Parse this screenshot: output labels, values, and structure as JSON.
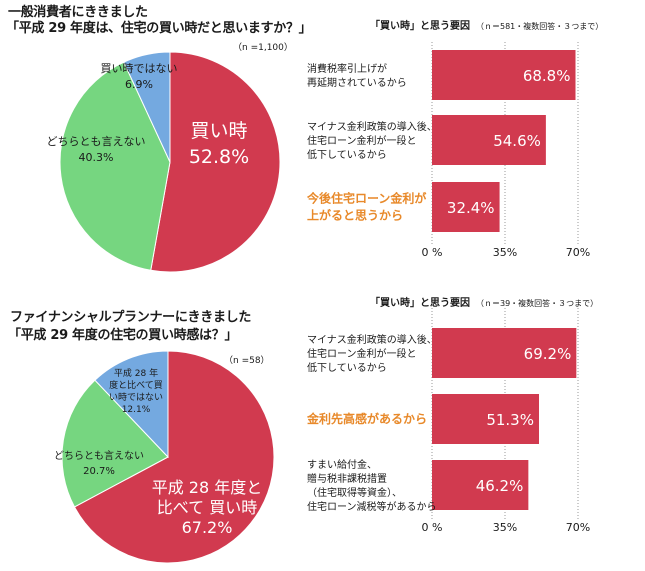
{
  "sections": [
    {
      "title_line1": "一般消費者にききました",
      "title_line2": "「平成 29 年度は、住宅の買い時だと思いますか？」",
      "sample_note": "（n =1,100）",
      "reasons_title": "「買い時」と思う要因",
      "reasons_note": "（ｎ＝581・複数回答・３つまで）"
    },
    {
      "title_line1": "ファイナンシャルプランナーにききました",
      "title_line2": "「平成 29 年度の住宅の買い時感は？」",
      "sample_note": "（n =58）",
      "reasons_title": "「買い時」と思う要因",
      "reasons_note": "（ｎ＝39・複数回答・３つまで）"
    }
  ],
  "colors": {
    "red": "#d13a4f",
    "green": "#76d680",
    "blue": "#74a9e0",
    "orange": "#e8892a"
  },
  "chart_data": [
    {
      "type": "pie",
      "slices": [
        {
          "label": "買い時",
          "value": 52.8,
          "display": "52.8%",
          "color": "#d13a4f"
        },
        {
          "label": "どちらとも言えない",
          "value": 40.3,
          "display": "40.3%",
          "color": "#76d680"
        },
        {
          "label": "買い時ではない",
          "value": 6.9,
          "display": "6.9%",
          "color": "#74a9e0"
        }
      ]
    },
    {
      "type": "bar",
      "orientation": "horizontal",
      "categories": [
        [
          "消費税率引上げが",
          "再延期されているから"
        ],
        [
          "マイナス金利政策の導入後、",
          "住宅ローン金利が一段と",
          "低下しているから"
        ],
        [
          "今後住宅ローン金利が",
          "上がると思うから"
        ]
      ],
      "highlight": [
        false,
        false,
        true
      ],
      "values": [
        68.8,
        54.6,
        32.4
      ],
      "labels": [
        "68.8%",
        "54.6%",
        "32.4%"
      ],
      "xlim": [
        0,
        70
      ],
      "xticks": [
        "0 %",
        "35%",
        "70%"
      ]
    },
    {
      "type": "pie",
      "slices": [
        {
          "label": "平成 28 年度と比べて 買い時",
          "value": 67.2,
          "display": "67.2%",
          "color": "#d13a4f"
        },
        {
          "label": "どちらとも言えない",
          "value": 20.7,
          "display": "20.7%",
          "color": "#76d680"
        },
        {
          "label": "平成 28 年度と比べて買い時ではない",
          "value": 12.1,
          "display": "12.1%",
          "color": "#74a9e0"
        }
      ]
    },
    {
      "type": "bar",
      "orientation": "horizontal",
      "categories": [
        [
          "マイナス金利政策の導入後、",
          "住宅ローン金利が一段と",
          "低下しているから"
        ],
        [
          "金利先高感があるから"
        ],
        [
          "すまい給付金、",
          "贈与税非課税措置",
          "（住宅取得等資金）、",
          "住宅ローン減税等があるから"
        ]
      ],
      "highlight": [
        false,
        true,
        false
      ],
      "values": [
        69.2,
        51.3,
        46.2
      ],
      "labels": [
        "69.2%",
        "51.3%",
        "46.2%"
      ],
      "xlim": [
        0,
        70
      ],
      "xticks": [
        "0 %",
        "35%",
        "70%"
      ]
    }
  ]
}
